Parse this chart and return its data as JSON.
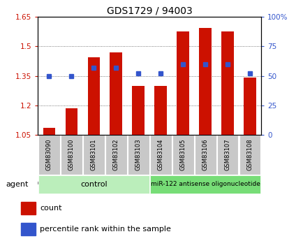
{
  "title": "GDS1729 / 94003",
  "categories": [
    "GSM83090",
    "GSM83100",
    "GSM83101",
    "GSM83102",
    "GSM83103",
    "GSM83104",
    "GSM83105",
    "GSM83106",
    "GSM83107",
    "GSM83108"
  ],
  "red_values": [
    1.085,
    1.185,
    1.445,
    1.47,
    1.3,
    1.3,
    1.575,
    1.595,
    1.575,
    1.34
  ],
  "blue_values": [
    50,
    50,
    57,
    57,
    52,
    52,
    60,
    60,
    60,
    52
  ],
  "ylim_left": [
    1.05,
    1.65
  ],
  "ylim_right": [
    0,
    100
  ],
  "yticks_left": [
    1.05,
    1.2,
    1.35,
    1.5,
    1.65
  ],
  "yticks_right": [
    0,
    25,
    50,
    75,
    100
  ],
  "ytick_labels_left": [
    "1.05",
    "1.2",
    "1.35",
    "1.5",
    "1.65"
  ],
  "ytick_labels_right": [
    "0",
    "25",
    "50",
    "75",
    "100%"
  ],
  "bar_color": "#cc1100",
  "dot_color": "#3355cc",
  "control_label": "control",
  "treatment_label": "miR-122 antisense oligonucleotide",
  "control_color": "#bbeebb",
  "treatment_color": "#77dd77",
  "sample_box_color": "#c8c8c8",
  "agent_label": "agent",
  "legend1": "count",
  "legend2": "percentile rank within the sample",
  "control_indices": [
    0,
    1,
    2,
    3,
    4
  ],
  "treatment_indices": [
    5,
    6,
    7,
    8,
    9
  ],
  "grid_color": "#555555",
  "tick_label_color_left": "#cc1100",
  "tick_label_color_right": "#3355cc",
  "fig_bg": "#ffffff"
}
